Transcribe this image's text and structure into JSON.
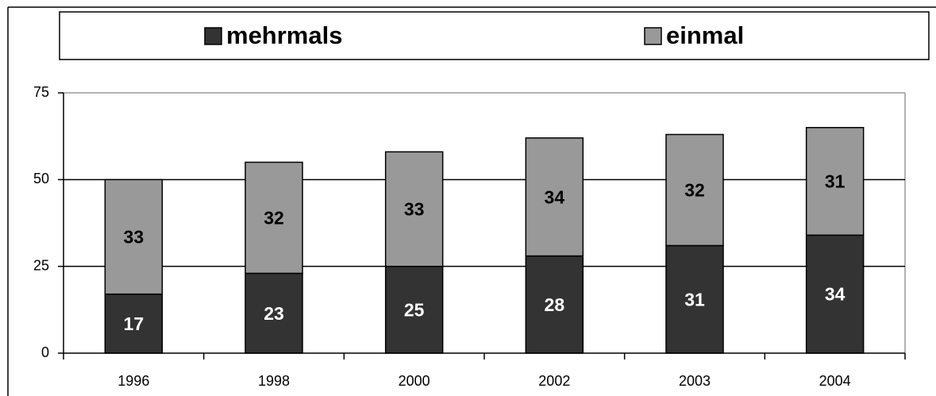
{
  "chart_data": {
    "type": "bar",
    "stacked": true,
    "categories": [
      "1996",
      "1998",
      "2000",
      "2002",
      "2003",
      "2004"
    ],
    "series": [
      {
        "name": "mehrmals",
        "color": "#333333",
        "label_color": "#ffffff",
        "values": [
          17,
          23,
          25,
          28,
          31,
          34
        ]
      },
      {
        "name": "einmal",
        "color": "#999999",
        "label_color": "#000000",
        "values": [
          33,
          32,
          33,
          34,
          32,
          31
        ]
      }
    ],
    "ylim": [
      0,
      75
    ],
    "yticks": [
      0,
      25,
      50,
      75
    ],
    "grid": true,
    "legend": "top"
  }
}
